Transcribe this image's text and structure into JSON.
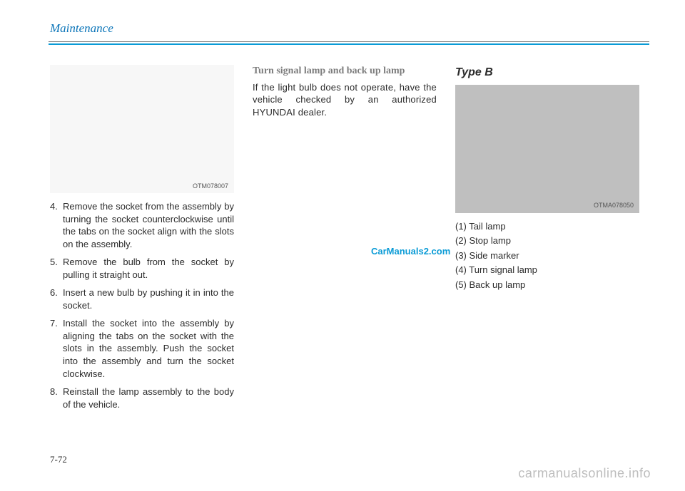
{
  "header": {
    "section_title": "Maintenance"
  },
  "col1": {
    "fig_caption": "OTM078007",
    "items": [
      {
        "n": "4.",
        "t": "Remove the socket from the assembly by turning the socket counterclockwise until the tabs on the socket align with the slots on the assembly."
      },
      {
        "n": "5.",
        "t": "Remove the bulb from the socket by pulling it straight out."
      },
      {
        "n": "6.",
        "t": "Insert a new bulb by pushing it in into the socket."
      },
      {
        "n": "7.",
        "t": "Install the socket into the assembly by aligning the tabs on the socket with the slots in the assembly. Push the socket into the assembly and turn the socket clockwise."
      },
      {
        "n": "8.",
        "t": "Reinstall the lamp assembly to the body of the vehicle."
      }
    ]
  },
  "col2": {
    "subhead": "Turn signal lamp and back up lamp",
    "para": "If the light bulb does not operate, have the vehicle checked by an authorized HYUNDAI dealer."
  },
  "col3": {
    "type_head": "Type B",
    "fig_caption": "OTMA078050",
    "items": [
      "(1) Tail lamp",
      "(2) Stop lamp",
      "(3) Side marker",
      "(4) Turn signal lamp",
      "(5) Back up lamp"
    ]
  },
  "watermarks": {
    "w1": "CarManuals2.com",
    "w2": "carmanualsonline.info"
  },
  "page_number": "7-72",
  "colors": {
    "accent": "#0a9bd6",
    "title": "#0a74b8",
    "fig_light": "#f7f7f7",
    "fig_gray": "#bfbfbf"
  }
}
